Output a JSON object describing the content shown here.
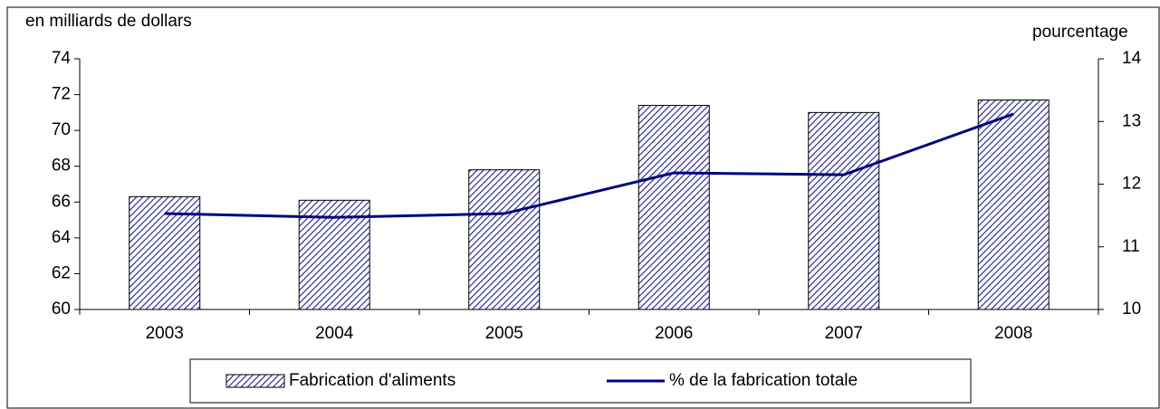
{
  "chart_data": {
    "type": "bar",
    "y_label": "en milliards de dollars",
    "y2_label": "pourcentage",
    "categories": [
      "2003",
      "2004",
      "2005",
      "2006",
      "2007",
      "2008"
    ],
    "series": [
      {
        "name": "Fabrication d'aliments",
        "type": "bar",
        "color": "#333399",
        "values": [
          66.3,
          66.1,
          67.8,
          71.4,
          71.0,
          71.7
        ]
      },
      {
        "name": "% de la fabrication totale",
        "type": "line",
        "axis": "y2",
        "color": "#000080",
        "values": [
          11.53,
          11.47,
          11.53,
          12.18,
          12.15,
          13.12
        ]
      }
    ],
    "ylim": [
      60,
      74
    ],
    "yticks": [
      60,
      62,
      64,
      66,
      68,
      70,
      72,
      74
    ],
    "y2lim": [
      10,
      14
    ],
    "y2ticks": [
      10,
      11,
      12,
      13,
      14
    ],
    "grid": false,
    "legend": "bottom"
  }
}
